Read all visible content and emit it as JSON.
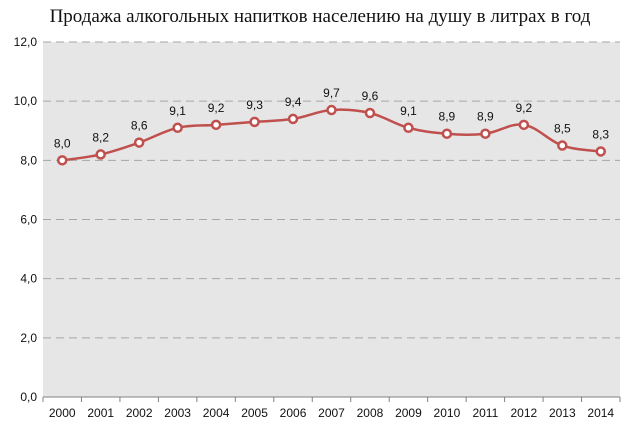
{
  "chart_data": {
    "type": "line",
    "title": "Продажа алкогольных напитков населению на душу в литрах в год",
    "xlabel": "",
    "ylabel": "",
    "categories": [
      "2000",
      "2001",
      "2002",
      "2003",
      "2004",
      "2005",
      "2006",
      "2007",
      "2008",
      "2009",
      "2010",
      "2011",
      "2012",
      "2013",
      "2014"
    ],
    "series": [
      {
        "values": [
          8.0,
          8.2,
          8.6,
          9.1,
          9.2,
          9.3,
          9.4,
          9.7,
          9.6,
          9.1,
          8.9,
          8.9,
          9.2,
          8.5,
          8.3
        ],
        "labels": [
          "8,0",
          "8,2",
          "8,6",
          "9,1",
          "9,2",
          "9,3",
          "9,4",
          "9,7",
          "9,6",
          "9,1",
          "8,9",
          "8,9",
          "9,2",
          "8,5",
          "8,3"
        ]
      }
    ],
    "ylim": [
      0,
      12
    ],
    "yticks": [
      0,
      2,
      4,
      6,
      8,
      10,
      12
    ],
    "ytick_labels": [
      "0,0",
      "2,0",
      "4,0",
      "6,0",
      "8,0",
      "10,0",
      "12,0"
    ],
    "grid": true,
    "legend": "none",
    "colors": {
      "plot_background": "#e6e6e6",
      "line": "#c0504d",
      "marker_fill": "#ffffff",
      "grid": "#a6a6a6"
    }
  }
}
